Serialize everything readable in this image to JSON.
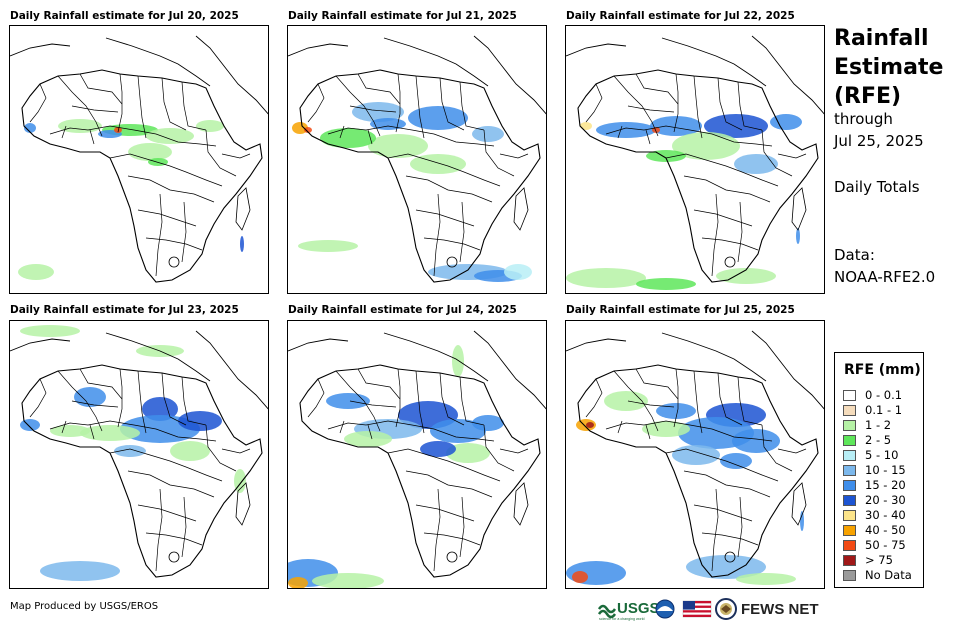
{
  "panels": [
    {
      "title": "Daily Rainfall estimate for Jul 20, 2025"
    },
    {
      "title": "Daily Rainfall estimate for Jul 21, 2025"
    },
    {
      "title": "Daily Rainfall estimate for Jul 22, 2025"
    },
    {
      "title": "Daily Rainfall estimate for Jul 23, 2025"
    },
    {
      "title": "Daily Rainfall estimate for Jul 24, 2025"
    },
    {
      "title": "Daily Rainfall estimate for Jul 25, 2025"
    }
  ],
  "side": {
    "title_line1": "Rainfall",
    "title_line2": "Estimate",
    "title_line3": "(RFE)",
    "through": "through",
    "date": "Jul 25, 2025",
    "totals": "Daily Totals",
    "data_label": "Data:",
    "data_source": "NOAA-RFE2.0"
  },
  "legend": {
    "title": "RFE (mm)",
    "items": [
      {
        "label": "0 - 0.1",
        "color": "#ffffff"
      },
      {
        "label": "0.1 - 1",
        "color": "#f5dcbc"
      },
      {
        "label": "1 - 2",
        "color": "#b6f2a6"
      },
      {
        "label": "2 - 5",
        "color": "#5ee65a"
      },
      {
        "label": "5 - 10",
        "color": "#b8eef6"
      },
      {
        "label": "10 - 15",
        "color": "#7cb8ec"
      },
      {
        "label": "15 - 20",
        "color": "#3f8eea"
      },
      {
        "label": "20 - 30",
        "color": "#1c54d2"
      },
      {
        "label": "30 - 40",
        "color": "#fce48a"
      },
      {
        "label": "40 - 50",
        "color": "#f7a200"
      },
      {
        "label": "50 - 75",
        "color": "#f24a14"
      },
      {
        "label": "> 75",
        "color": "#a01818"
      },
      {
        "label": "No Data",
        "color": "#9a9a9a"
      }
    ]
  },
  "footer": {
    "producer": "Map Produced by USGS/EROS",
    "usgs": "USGS",
    "usgs_tagline": "science for a changing world",
    "fews": "FEWS NET"
  }
}
